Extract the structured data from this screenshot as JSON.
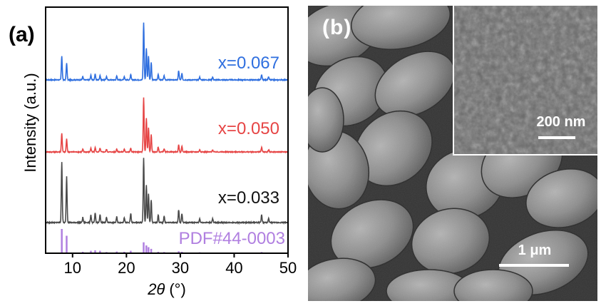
{
  "chart_data": {
    "type": "line",
    "panel_label": "(a)",
    "xlabel": "2θ (°)",
    "xlabel_symbol": "2θ",
    "xlabel_unit": "(°)",
    "ylabel": "Intensity (a.u.)",
    "xlim": [
      5,
      50
    ],
    "xticks": [
      "10",
      "20",
      "30",
      "40",
      "50"
    ],
    "grid": false,
    "series": [
      {
        "name": "x=0.067",
        "color": "#2f6fdf",
        "peaks": [
          [
            8.0,
            0.42
          ],
          [
            8.9,
            0.3
          ],
          [
            11.9,
            0.06
          ],
          [
            13.4,
            0.08
          ],
          [
            14.2,
            0.1
          ],
          [
            15.1,
            0.08
          ],
          [
            16.3,
            0.06
          ],
          [
            18.2,
            0.07
          ],
          [
            19.6,
            0.06
          ],
          [
            20.8,
            0.09
          ],
          [
            23.2,
            1.0
          ],
          [
            23.7,
            0.55
          ],
          [
            24.1,
            0.42
          ],
          [
            24.6,
            0.3
          ],
          [
            25.9,
            0.1
          ],
          [
            27.0,
            0.07
          ],
          [
            29.7,
            0.16
          ],
          [
            30.3,
            0.12
          ],
          [
            33.6,
            0.05
          ],
          [
            36.0,
            0.05
          ],
          [
            45.1,
            0.09
          ],
          [
            46.4,
            0.05
          ]
        ]
      },
      {
        "name": "x=0.050",
        "color": "#e64545",
        "peaks": [
          [
            8.0,
            0.35
          ],
          [
            8.9,
            0.24
          ],
          [
            11.9,
            0.05
          ],
          [
            13.4,
            0.07
          ],
          [
            14.2,
            0.08
          ],
          [
            15.1,
            0.07
          ],
          [
            16.3,
            0.05
          ],
          [
            18.2,
            0.06
          ],
          [
            19.6,
            0.05
          ],
          [
            20.8,
            0.07
          ],
          [
            23.2,
            1.0
          ],
          [
            23.7,
            0.62
          ],
          [
            24.1,
            0.45
          ],
          [
            24.6,
            0.32
          ],
          [
            25.9,
            0.09
          ],
          [
            27.0,
            0.06
          ],
          [
            29.7,
            0.13
          ],
          [
            30.3,
            0.1
          ],
          [
            33.6,
            0.04
          ],
          [
            36.0,
            0.04
          ],
          [
            45.1,
            0.08
          ],
          [
            46.4,
            0.04
          ]
        ]
      },
      {
        "name": "x=0.033",
        "color": "#4a4a4a",
        "peaks": [
          [
            8.0,
            0.95
          ],
          [
            8.9,
            0.72
          ],
          [
            11.9,
            0.08
          ],
          [
            13.4,
            0.12
          ],
          [
            14.2,
            0.15
          ],
          [
            15.1,
            0.12
          ],
          [
            16.3,
            0.08
          ],
          [
            18.2,
            0.09
          ],
          [
            19.6,
            0.08
          ],
          [
            20.8,
            0.14
          ],
          [
            23.2,
            1.0
          ],
          [
            23.7,
            0.58
          ],
          [
            24.1,
            0.45
          ],
          [
            24.6,
            0.35
          ],
          [
            25.9,
            0.12
          ],
          [
            27.0,
            0.1
          ],
          [
            29.7,
            0.2
          ],
          [
            30.3,
            0.14
          ],
          [
            33.6,
            0.06
          ],
          [
            36.0,
            0.06
          ],
          [
            45.1,
            0.12
          ],
          [
            46.4,
            0.06
          ]
        ]
      },
      {
        "name": "PDF#44-0003",
        "color": "#b07fe0",
        "type": "stick",
        "peaks": [
          [
            8.0,
            1.0
          ],
          [
            8.9,
            0.72
          ],
          [
            11.9,
            0.06
          ],
          [
            13.4,
            0.1
          ],
          [
            14.2,
            0.12
          ],
          [
            15.1,
            0.1
          ],
          [
            16.3,
            0.05
          ],
          [
            18.2,
            0.07
          ],
          [
            19.6,
            0.06
          ],
          [
            20.8,
            0.1
          ],
          [
            23.2,
            0.45
          ],
          [
            23.7,
            0.32
          ],
          [
            24.1,
            0.25
          ],
          [
            24.6,
            0.18
          ],
          [
            25.9,
            0.06
          ],
          [
            27.0,
            0.05
          ],
          [
            29.7,
            0.08
          ],
          [
            30.3,
            0.06
          ],
          [
            33.6,
            0.04
          ],
          [
            45.1,
            0.05
          ]
        ]
      }
    ]
  },
  "sem": {
    "panel_label": "(b)",
    "scale_main": "1 μm",
    "scale_inset": "200 nm"
  },
  "colors": {
    "background": "#ffffff",
    "axis": "#000000",
    "sem_background": "#3a3a3a"
  }
}
